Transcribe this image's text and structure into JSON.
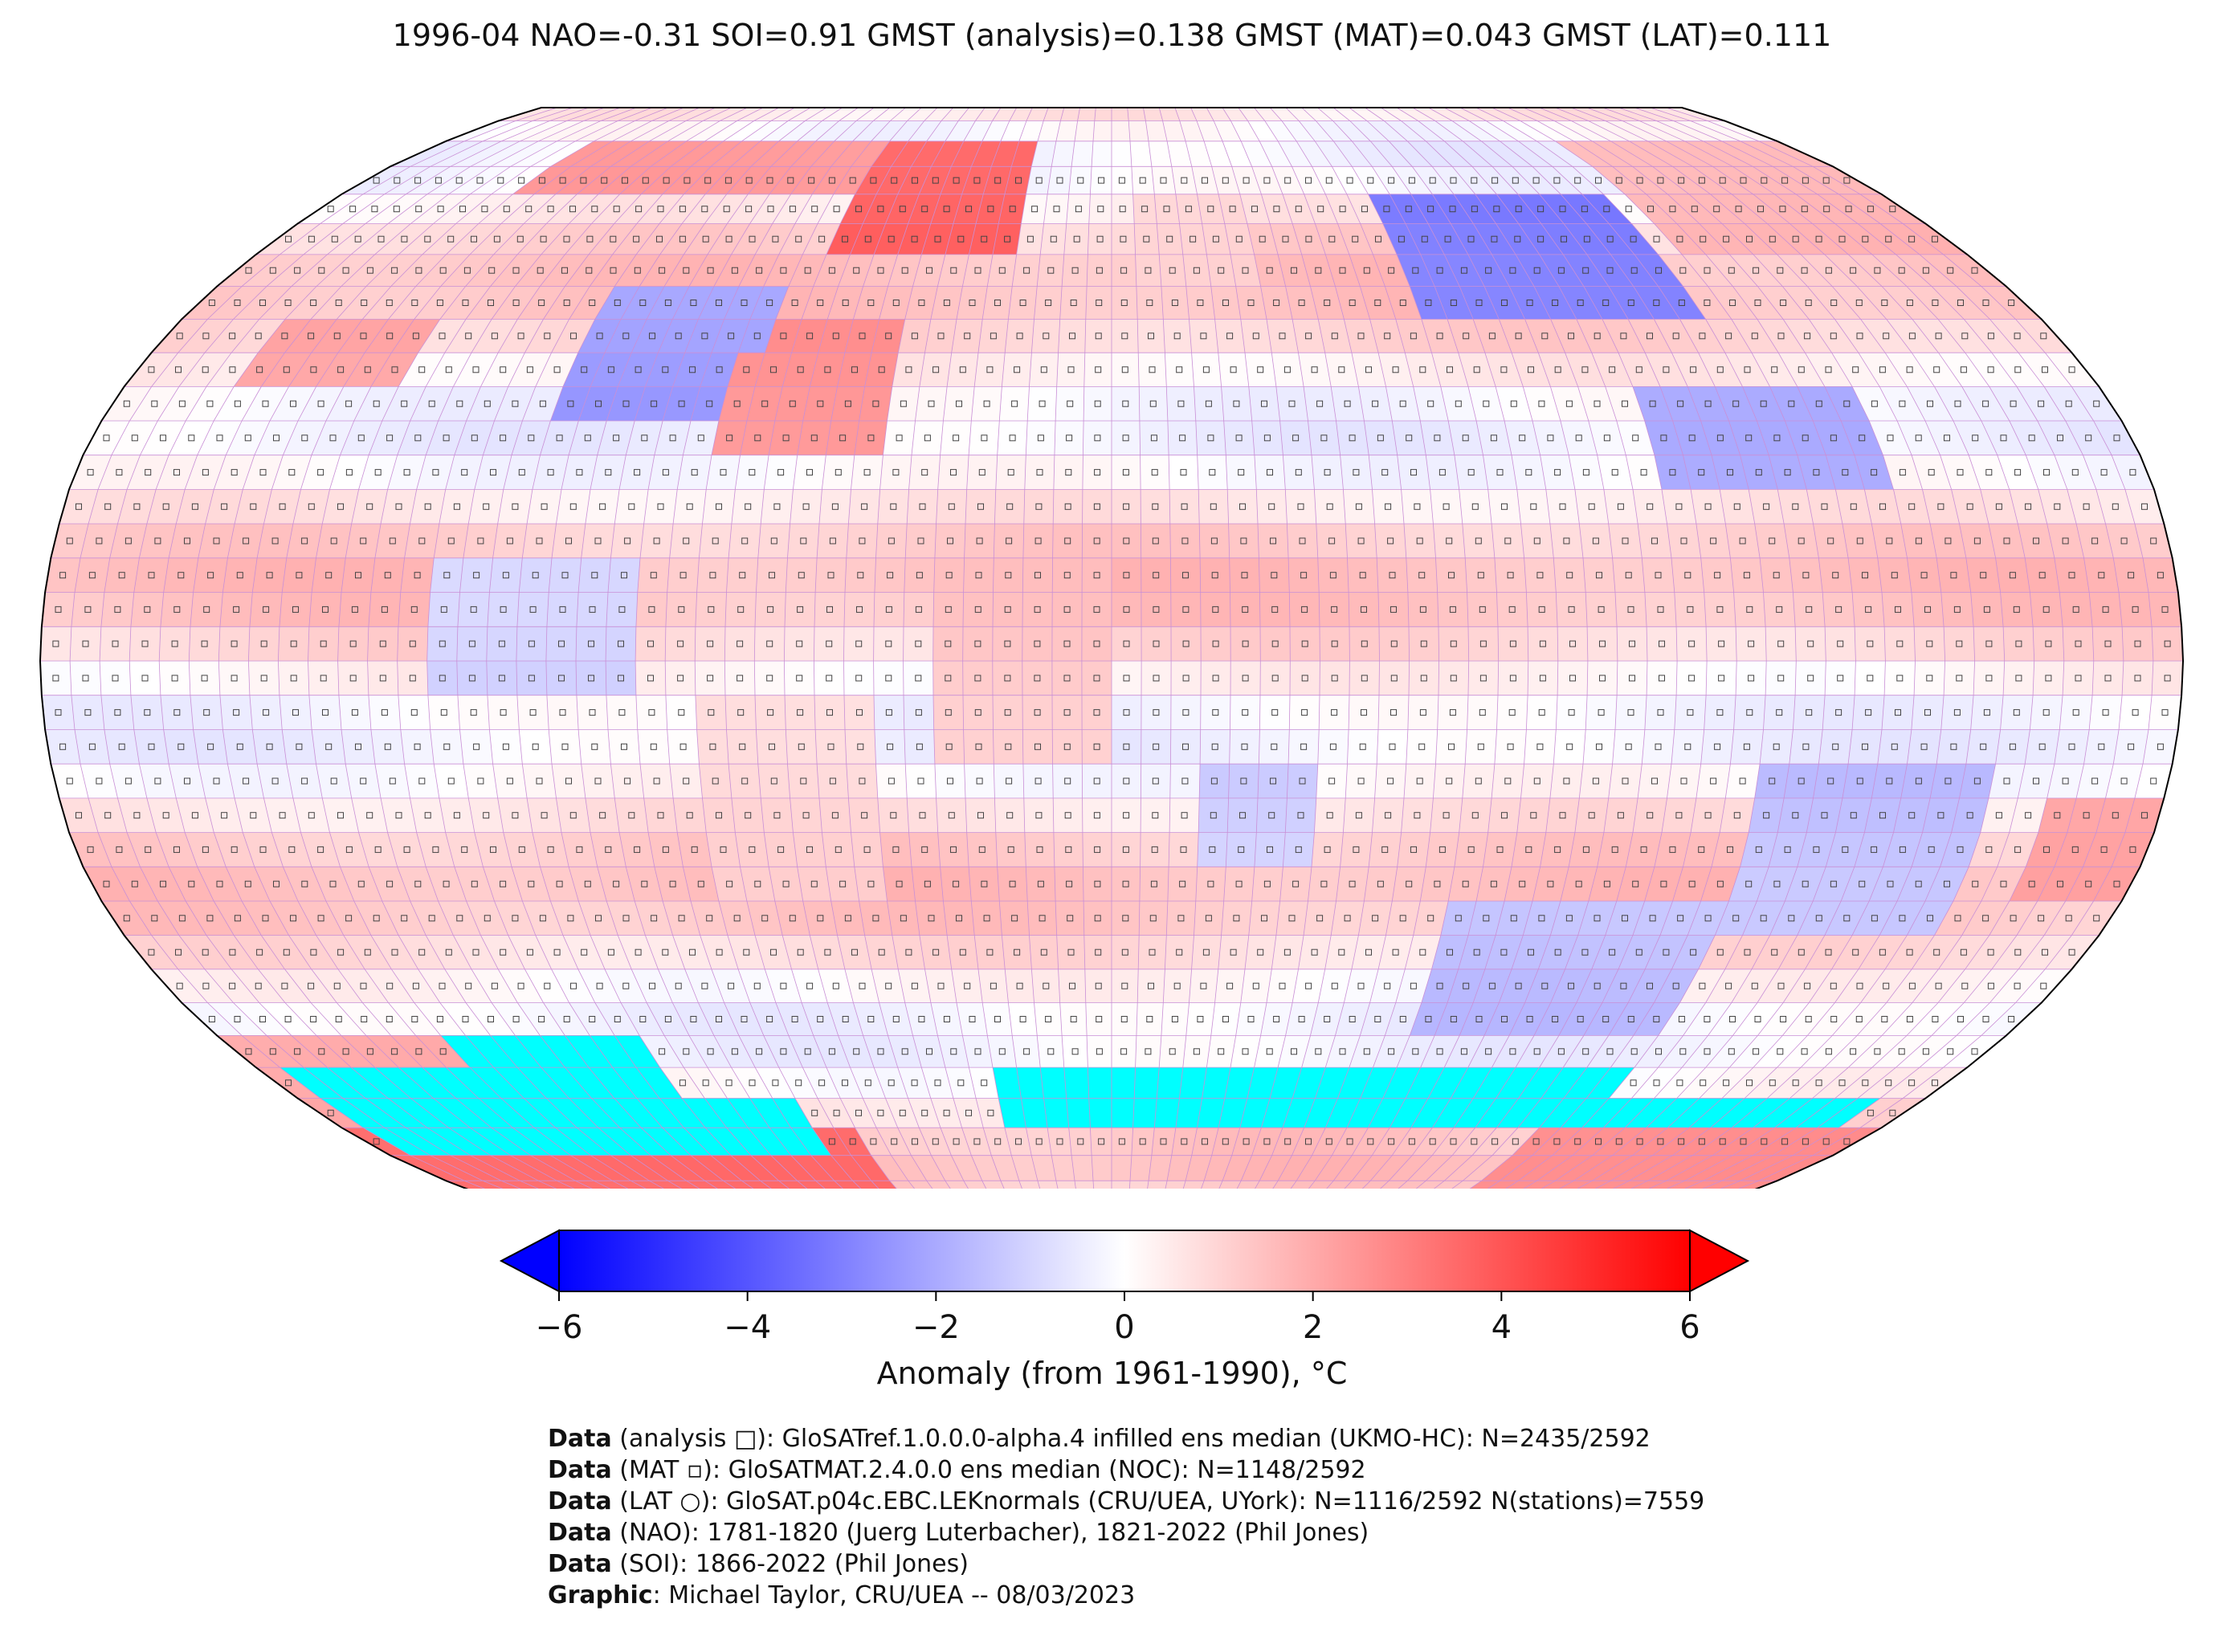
{
  "title": "1996-04 NAO=-0.31 SOI=0.91 GMST (analysis)=0.138 GMST (MAT)=0.043 GMST (LAT)=0.111",
  "map": {
    "projection": "Robinson",
    "grid_resolution_deg": 5,
    "missing_color": "#00ffff",
    "anomaly_regions": [
      {
        "name": "greenland",
        "lat": [
          62,
          82
        ],
        "lon": [
          -60,
          -20
        ],
        "anomaly": 4.5
      },
      {
        "name": "arctic-canada",
        "lat": [
          68,
          82
        ],
        "lon": [
          -140,
          -60
        ],
        "anomaly": 3.0
      },
      {
        "name": "eastern-north-america",
        "lat": [
          35,
          55
        ],
        "lon": [
          -100,
          -65
        ],
        "anomaly": -3.0
      },
      {
        "name": "north-atlantic-west",
        "lat": [
          30,
          48
        ],
        "lon": [
          -70,
          -40
        ],
        "anomaly": 3.0
      },
      {
        "name": "north-pacific-east",
        "lat": [
          38,
          52
        ],
        "lon": [
          -160,
          -130
        ],
        "anomaly": 2.5
      },
      {
        "name": "central-siberia",
        "lat": [
          50,
          68
        ],
        "lon": [
          60,
          115
        ],
        "anomaly": -4.0
      },
      {
        "name": "east-asia",
        "lat": [
          25,
          42
        ],
        "lon": [
          95,
          135
        ],
        "anomaly": -2.5
      },
      {
        "name": "east-siberia",
        "lat": [
          62,
          78
        ],
        "lon": [
          120,
          180
        ],
        "anomaly": 2.0
      },
      {
        "name": "scandinavia",
        "lat": [
          55,
          72
        ],
        "lon": [
          5,
          30
        ],
        "anomaly": 1.0
      },
      {
        "name": "tropical-east-pacific",
        "lat": [
          -5,
          15
        ],
        "lon": [
          -115,
          -80
        ],
        "anomaly": -1.5
      },
      {
        "name": "australia-south",
        "lat": [
          -40,
          -15
        ],
        "lon": [
          110,
          150
        ],
        "anomaly": -2.0
      },
      {
        "name": "south-indian",
        "lat": [
          -55,
          -35
        ],
        "lon": [
          60,
          110
        ],
        "anomaly": -2.0
      },
      {
        "name": "south-africa",
        "lat": [
          -30,
          -15
        ],
        "lon": [
          15,
          35
        ],
        "anomaly": -1.5
      },
      {
        "name": "antarctica-west",
        "lat": [
          -90,
          -70
        ],
        "lon": [
          -180,
          -60
        ],
        "anomaly": 4.0
      },
      {
        "name": "antarctica-east",
        "lat": [
          -90,
          -72
        ],
        "lon": [
          100,
          180
        ],
        "anomaly": 3.0
      },
      {
        "name": "southern-ocean-pacific",
        "lat": [
          -70,
          -55
        ],
        "lon": [
          -180,
          -100
        ],
        "anomaly": 2.5
      },
      {
        "name": "tropical-atlantic",
        "lat": [
          -15,
          15
        ],
        "lon": [
          -30,
          0
        ],
        "anomaly": 1.5
      },
      {
        "name": "south-america",
        "lat": [
          -35,
          -5
        ],
        "lon": [
          -70,
          -40
        ],
        "anomaly": 1.0
      },
      {
        "name": "western-australia-ocean",
        "lat": [
          -35,
          -20
        ],
        "lon": [
          160,
          180
        ],
        "anomaly": 2.5
      }
    ],
    "missing_regions": [
      {
        "lat": [
          -70,
          -55
        ],
        "lon": [
          -135,
          -95
        ]
      },
      {
        "lat": [
          -75,
          -60
        ],
        "lon": [
          -175,
          -110
        ]
      },
      {
        "lat": [
          -75,
          -65
        ],
        "lon": [
          -130,
          -70
        ]
      },
      {
        "lat": [
          -70,
          -60
        ],
        "lon": [
          -25,
          30
        ]
      },
      {
        "lat": [
          -70,
          -60
        ],
        "lon": [
          30,
          110
        ]
      },
      {
        "lat": [
          -70,
          -65
        ],
        "lon": [
          110,
          170
        ]
      }
    ]
  },
  "colorbar": {
    "vmin": -6,
    "vmax": 6,
    "extend": "both",
    "ticks": [
      "−6",
      "−4",
      "−2",
      "0",
      "2",
      "4",
      "6"
    ],
    "tick_values": [
      -6,
      -4,
      -2,
      0,
      2,
      4,
      6
    ],
    "stops": [
      "#0000ff",
      "#ffffff",
      "#ff0000"
    ],
    "label": "Anomaly (from 1961-1990), °C"
  },
  "footer": [
    {
      "bold": "Data",
      "text": " (analysis □): GloSATref.1.0.0.0-alpha.4 infilled ens median (UKMO-HC): N=2435/2592"
    },
    {
      "bold": "Data",
      "text": " (MAT ▫): GloSATMAT.2.4.0.0 ens median (NOC): N=1148/2592"
    },
    {
      "bold": "Data",
      "text": " (LAT ○): GloSAT.p04c.EBC.LEKnormals (CRU/UEA, UYork): N=1116/2592 N(stations)=7559"
    },
    {
      "bold": "Data",
      "text": " (NAO): 1781-1820 (Juerg Luterbacher), 1821-2022 (Phil Jones)"
    },
    {
      "bold": "Data",
      "text": " (SOI): 1866-2022 (Phil Jones)"
    },
    {
      "bold": "Graphic",
      "text": ": Michael Taylor, CRU/UEA -- 08/03/2023"
    }
  ]
}
